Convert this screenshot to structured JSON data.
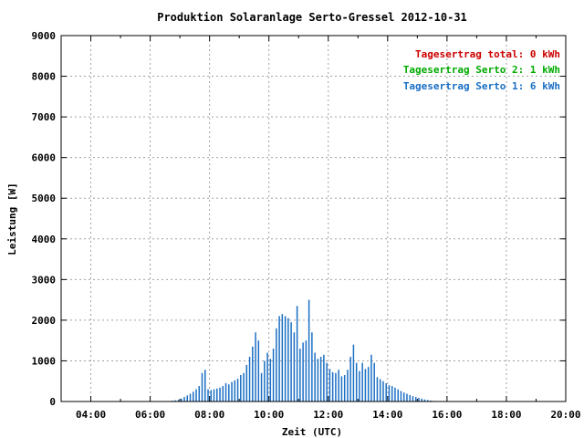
{
  "chart_data": {
    "type": "bar",
    "title": "Produktion Solaranlage Serto-Gressel 2012-10-31",
    "xlabel": "Zeit (UTC)",
    "ylabel": "Leistung [W]",
    "xlim": [
      3.0,
      20.0
    ],
    "ylim": [
      0,
      9000
    ],
    "x_ticks": [
      {
        "value": 4,
        "label": "04:00"
      },
      {
        "value": 6,
        "label": "06:00"
      },
      {
        "value": 8,
        "label": "08:00"
      },
      {
        "value": 10,
        "label": "10:00"
      },
      {
        "value": 12,
        "label": "12:00"
      },
      {
        "value": 14,
        "label": "14:00"
      },
      {
        "value": 16,
        "label": "16:00"
      },
      {
        "value": 18,
        "label": "18:00"
      },
      {
        "value": 20,
        "label": "20:00"
      }
    ],
    "y_ticks": [
      {
        "value": 0,
        "label": "0"
      },
      {
        "value": 1000,
        "label": "1000"
      },
      {
        "value": 2000,
        "label": "2000"
      },
      {
        "value": 3000,
        "label": "3000"
      },
      {
        "value": 4000,
        "label": "4000"
      },
      {
        "value": 5000,
        "label": "5000"
      },
      {
        "value": 6000,
        "label": "6000"
      },
      {
        "value": 7000,
        "label": "7000"
      },
      {
        "value": 8000,
        "label": "8000"
      },
      {
        "value": 9000,
        "label": "9000"
      }
    ],
    "grid": true,
    "legend_position": "top-right",
    "legend": [
      {
        "label": "Tagesertrag total: 0 kWh",
        "color": "#cc0000"
      },
      {
        "label": "Tagesertrag Serto 2: 1 kWh",
        "color": "#00aa00"
      },
      {
        "label": "Tagesertrag Serto 1: 6 kWh",
        "color": "#1a6fc4"
      }
    ],
    "series": [
      {
        "color": "#1a6fc4",
        "x": [
          6.75,
          6.85,
          6.95,
          7.05,
          7.15,
          7.25,
          7.35,
          7.45,
          7.55,
          7.65,
          7.75,
          7.85,
          7.95,
          8.05,
          8.15,
          8.25,
          8.35,
          8.45,
          8.55,
          8.65,
          8.75,
          8.85,
          8.95,
          9.05,
          9.15,
          9.25,
          9.35,
          9.45,
          9.55,
          9.65,
          9.75,
          9.85,
          9.95,
          10.05,
          10.15,
          10.25,
          10.35,
          10.45,
          10.55,
          10.65,
          10.75,
          10.85,
          10.95,
          11.05,
          11.15,
          11.25,
          11.35,
          11.45,
          11.55,
          11.65,
          11.75,
          11.85,
          11.95,
          12.05,
          12.15,
          12.25,
          12.35,
          12.45,
          12.55,
          12.65,
          12.75,
          12.85,
          12.95,
          13.05,
          13.15,
          13.25,
          13.35,
          13.45,
          13.55,
          13.65,
          13.75,
          13.85,
          13.95,
          14.05,
          14.15,
          14.25,
          14.35,
          14.45,
          14.55,
          14.65,
          14.75,
          14.85,
          14.95,
          15.05,
          15.15,
          15.25,
          15.35,
          15.45,
          15.55,
          15.65
        ],
        "values": [
          20,
          30,
          40,
          70,
          110,
          150,
          190,
          240,
          300,
          380,
          700,
          780,
          300,
          280,
          300,
          320,
          340,
          380,
          450,
          420,
          480,
          520,
          560,
          650,
          700,
          900,
          1100,
          1350,
          1700,
          1500,
          700,
          1000,
          1200,
          1050,
          1300,
          1800,
          2100,
          2150,
          2100,
          2050,
          1950,
          1700,
          2350,
          1300,
          1450,
          1500,
          2500,
          1700,
          1200,
          1050,
          1100,
          1150,
          950,
          800,
          720,
          700,
          780,
          620,
          650,
          780,
          1100,
          1400,
          950,
          750,
          950,
          800,
          850,
          1150,
          950,
          600,
          550,
          500,
          450,
          400,
          380,
          340,
          300,
          260,
          220,
          190,
          160,
          130,
          110,
          90,
          70,
          50,
          35,
          25,
          15,
          8
        ]
      }
    ]
  }
}
